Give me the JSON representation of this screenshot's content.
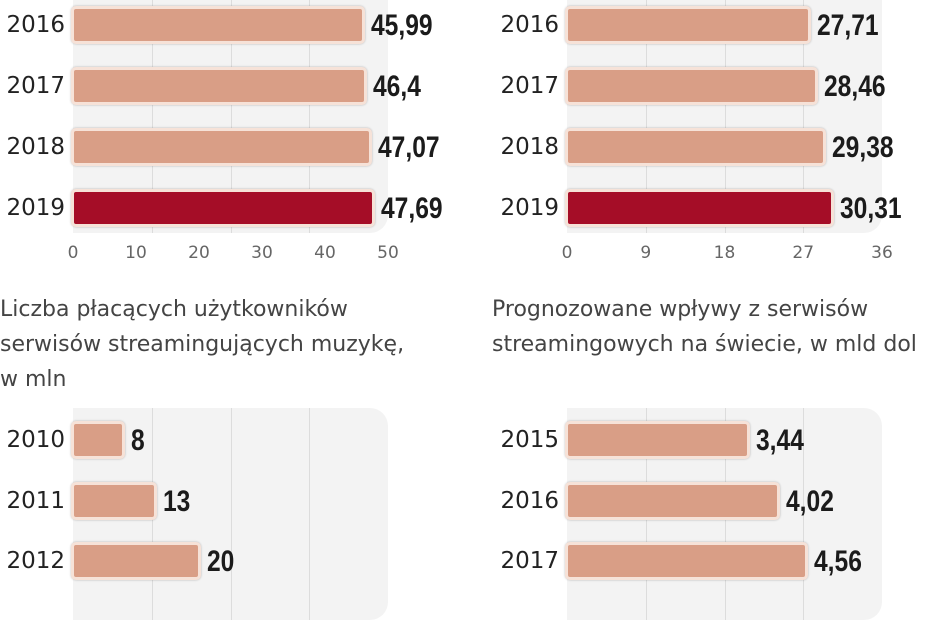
{
  "colors": {
    "bar": "#d99e86",
    "highlight": "#a50d27",
    "panel": "#f3f3f3"
  },
  "chart_data": [
    {
      "type": "bar",
      "orientation": "horizontal",
      "categories": [
        "2016",
        "2017",
        "2018",
        "2019"
      ],
      "values": [
        45.99,
        46.4,
        47.07,
        47.69
      ],
      "labels": [
        "45,99",
        "46,4",
        "47,07",
        "47,69"
      ],
      "highlight": "2019",
      "xlim": [
        0,
        50
      ],
      "ticks": [
        "0",
        "10",
        "20",
        "30",
        "40",
        "50"
      ],
      "tick_values": [
        0,
        10,
        20,
        30,
        40,
        50
      ],
      "grid": true
    },
    {
      "type": "bar",
      "orientation": "horizontal",
      "categories": [
        "2016",
        "2017",
        "2018",
        "2019"
      ],
      "values": [
        27.71,
        28.46,
        29.38,
        30.31
      ],
      "labels": [
        "27,71",
        "28,46",
        "29,38",
        "30,31"
      ],
      "highlight": "2019",
      "xlim": [
        0,
        36
      ],
      "ticks": [
        "0",
        "9",
        "18",
        "27",
        "36"
      ],
      "tick_values": [
        0,
        9,
        18,
        27,
        36
      ],
      "grid": true
    },
    {
      "type": "bar",
      "orientation": "horizontal",
      "title": "Liczba płacących użytkowników\nserwisów streamingujących muzykę,\nw mln",
      "categories": [
        "2010",
        "2011",
        "2012"
      ],
      "values": [
        8,
        13,
        20
      ],
      "labels": [
        "8",
        "13",
        "20"
      ],
      "xlim": [
        0,
        50
      ],
      "grid": true
    },
    {
      "type": "bar",
      "orientation": "horizontal",
      "title": "Prognozowane wpływy z serwisów\nstreamingowych na świecie, w mld dol",
      "categories": [
        "2015",
        "2016",
        "2017"
      ],
      "values": [
        3.44,
        4.02,
        4.56
      ],
      "labels": [
        "3,44",
        "4,02",
        "4,56"
      ],
      "xlim": [
        0,
        6
      ],
      "grid": true
    }
  ]
}
